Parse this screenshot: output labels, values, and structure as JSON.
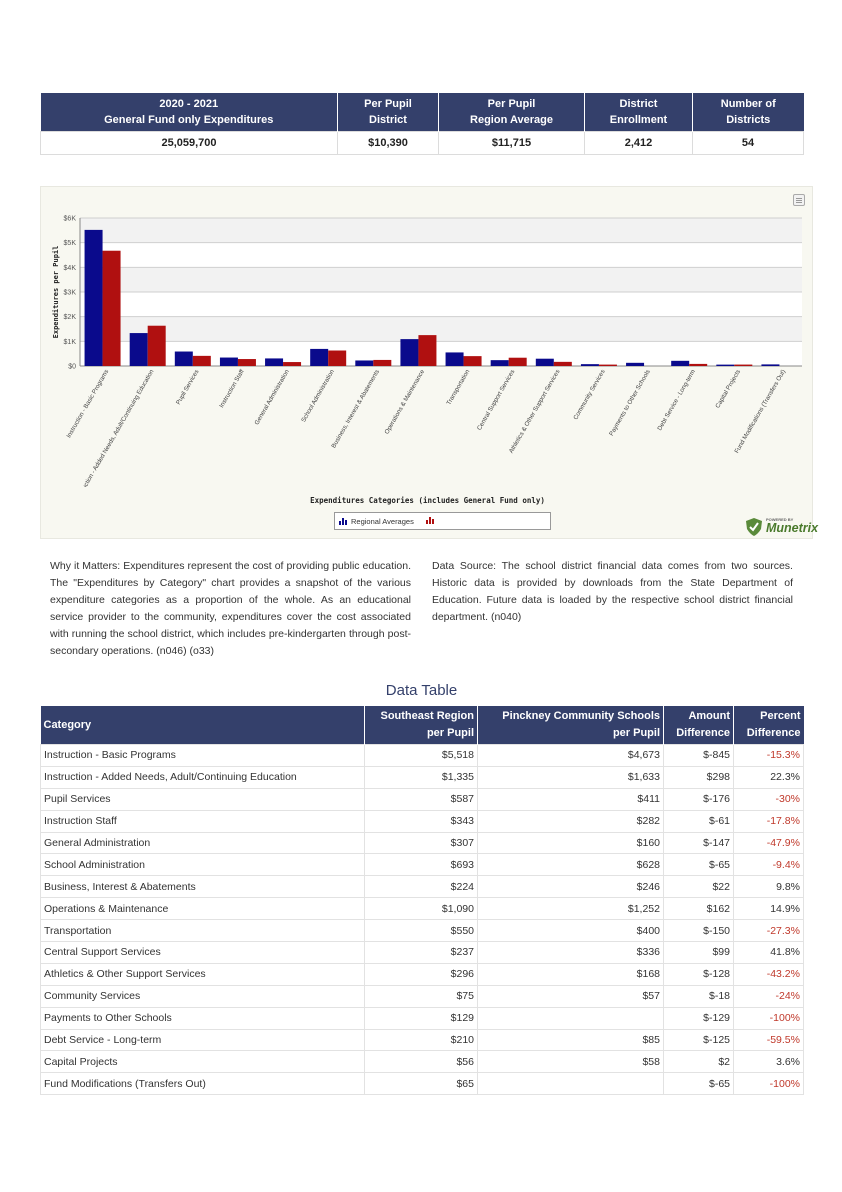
{
  "summary": {
    "headers": [
      [
        "2020 - 2021",
        "General Fund only Expenditures"
      ],
      [
        "Per Pupil",
        "District"
      ],
      [
        "Per Pupil",
        "Region Average"
      ],
      [
        "District",
        "Enrollment"
      ],
      [
        "Number of",
        "Districts"
      ]
    ],
    "values": [
      "25,059,700",
      "$10,390",
      "$11,715",
      "2,412",
      "54"
    ]
  },
  "chart_data": {
    "type": "bar",
    "title": "",
    "ylabel": "Expenditures per Pupil",
    "xlabel": "Expenditures Categories (includes General Fund only)",
    "ylim": [
      0,
      6000
    ],
    "yticks": [
      {
        "value": 0,
        "label": "$0"
      },
      {
        "value": 1000,
        "label": "$1K"
      },
      {
        "value": 2000,
        "label": "$2K"
      },
      {
        "value": 3000,
        "label": "$3K"
      },
      {
        "value": 4000,
        "label": "$4K"
      },
      {
        "value": 5000,
        "label": "$5K"
      },
      {
        "value": 6000,
        "label": "$6K"
      }
    ],
    "grid": true,
    "legend_placement": "bottom-center",
    "categories": [
      "Instruction - Basic Programs",
      "Instruction - Added Needs, Adult/Continuing Education",
      "Pupil Services",
      "Instruction Staff",
      "General Administration",
      "School Administration",
      "Business, Interest & Abatements",
      "Operations & Maintenance",
      "Transportation",
      "Central Support Services",
      "Athletics & Other Support Services",
      "Community Services",
      "Payments to Other Schools",
      "Debt Service - Long-term",
      "Capital Projects",
      "Fund Modifications (Transfers Out)"
    ],
    "series": [
      {
        "name": "Regional Averages",
        "color": "#0a0a8c",
        "values": [
          5518,
          1335,
          587,
          343,
          307,
          693,
          224,
          1090,
          550,
          237,
          296,
          75,
          129,
          210,
          56,
          65
        ]
      },
      {
        "name": "",
        "color": "#b01010",
        "values": [
          4673,
          1633,
          411,
          282,
          160,
          628,
          246,
          1252,
          400,
          336,
          168,
          57,
          0,
          85,
          58,
          0
        ]
      }
    ]
  },
  "notes": {
    "why_label": "Why it Matters:",
    "why_text": " Expenditures represent the cost of providing public education. The \"Expenditures by Category\" chart provides a snapshot of the various expenditure categories as a proportion of the whole. As an educational service provider to the community, expenditures cover the cost associated with running the school district, which includes pre-kindergarten through post-secondary operations. (n046) (o33)",
    "source_label": "Data Source:",
    "source_text": " The school district financial data comes from two sources. Historic data is provided by downloads from the State Department of Education. Future data is loaded by the respective school district financial department. (n040)"
  },
  "logo": {
    "small": "POWERED BY",
    "word": "Munetrix"
  },
  "data_table": {
    "title": "Data Table",
    "headers": [
      [
        "Category"
      ],
      [
        "Southeast Region",
        "per Pupil"
      ],
      [
        "Pinckney Community Schools",
        "per Pupil"
      ],
      [
        "Amount",
        "Difference"
      ],
      [
        "Percent",
        "Difference"
      ]
    ],
    "rows": [
      [
        "Instruction - Basic Programs",
        "$5,518",
        "$4,673",
        "$-845",
        "-15.3%"
      ],
      [
        "Instruction - Added Needs, Adult/Continuing Education",
        "$1,335",
        "$1,633",
        "$298",
        "22.3%"
      ],
      [
        "Pupil Services",
        "$587",
        "$411",
        "$-176",
        "-30%"
      ],
      [
        "Instruction Staff",
        "$343",
        "$282",
        "$-61",
        "-17.8%"
      ],
      [
        "General Administration",
        "$307",
        "$160",
        "$-147",
        "-47.9%"
      ],
      [
        "School Administration",
        "$693",
        "$628",
        "$-65",
        "-9.4%"
      ],
      [
        "Business, Interest & Abatements",
        "$224",
        "$246",
        "$22",
        "9.8%"
      ],
      [
        "Operations & Maintenance",
        "$1,090",
        "$1,252",
        "$162",
        "14.9%"
      ],
      [
        "Transportation",
        "$550",
        "$400",
        "$-150",
        "-27.3%"
      ],
      [
        "Central Support Services",
        "$237",
        "$336",
        "$99",
        "41.8%"
      ],
      [
        "Athletics & Other Support Services",
        "$296",
        "$168",
        "$-128",
        "-43.2%"
      ],
      [
        "Community Services",
        "$75",
        "$57",
        "$-18",
        "-24%"
      ],
      [
        "Payments to Other Schools",
        "$129",
        "",
        "$-129",
        "-100%"
      ],
      [
        "Debt Service - Long-term",
        "$210",
        "$85",
        "$-125",
        "-59.5%"
      ],
      [
        "Capital Projects",
        "$56",
        "$58",
        "$2",
        "3.6%"
      ],
      [
        "Fund Modifications (Transfers Out)",
        "$65",
        "",
        "$-65",
        "-100%"
      ]
    ]
  }
}
